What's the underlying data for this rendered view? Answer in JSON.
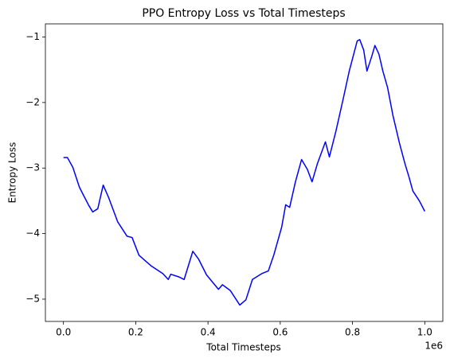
{
  "chart_data": {
    "type": "line",
    "title": "PPO Entropy Loss vs Total Timesteps",
    "xlabel": "Total Timesteps",
    "ylabel": "Entropy Loss",
    "x_offset_label": "1e6",
    "color": "#0000ff",
    "grid": false,
    "x": [
      0,
      11000,
      26000,
      44000,
      55000,
      70000,
      81000,
      95000,
      110000,
      125000,
      150000,
      176000,
      190000,
      209000,
      242000,
      275000,
      290000,
      297000,
      319000,
      334000,
      358000,
      374000,
      396000,
      429000,
      440000,
      462000,
      488000,
      505000,
      523000,
      549000,
      567000,
      582000,
      604000,
      615000,
      626000,
      642000,
      659000,
      675000,
      688000,
      703000,
      725000,
      736000,
      754000,
      774000,
      791000,
      813000,
      820000,
      831000,
      840000,
      853000,
      862000,
      873000,
      884000,
      897000,
      912000,
      930000,
      945000,
      956000,
      967000,
      985000,
      1000000
    ],
    "values": [
      -2.84,
      -2.84,
      -2.99,
      -3.29,
      -3.41,
      -3.57,
      -3.67,
      -3.62,
      -3.26,
      -3.45,
      -3.82,
      -4.04,
      -4.06,
      -4.33,
      -4.49,
      -4.61,
      -4.7,
      -4.62,
      -4.66,
      -4.7,
      -4.27,
      -4.39,
      -4.63,
      -4.85,
      -4.78,
      -4.87,
      -5.09,
      -5.01,
      -4.7,
      -4.61,
      -4.57,
      -4.33,
      -3.9,
      -3.56,
      -3.6,
      -3.21,
      -2.87,
      -3.02,
      -3.21,
      -2.93,
      -2.6,
      -2.83,
      -2.44,
      -1.95,
      -1.52,
      -1.06,
      -1.04,
      -1.2,
      -1.52,
      -1.3,
      -1.13,
      -1.26,
      -1.52,
      -1.77,
      -2.2,
      -2.62,
      -2.93,
      -3.13,
      -3.35,
      -3.5,
      -3.66
    ],
    "xlim": [
      -50000,
      1050000
    ],
    "ylim": [
      -5.34,
      -0.8
    ],
    "xticks": [
      {
        "value": 0,
        "label": "0.0"
      },
      {
        "value": 200000,
        "label": "0.2"
      },
      {
        "value": 400000,
        "label": "0.4"
      },
      {
        "value": 600000,
        "label": "0.6"
      },
      {
        "value": 800000,
        "label": "0.8"
      },
      {
        "value": 1000000,
        "label": "1.0"
      }
    ],
    "yticks": [
      {
        "value": -5,
        "label": "−5"
      },
      {
        "value": -4,
        "label": "−4"
      },
      {
        "value": -3,
        "label": "−3"
      },
      {
        "value": -2,
        "label": "−2"
      },
      {
        "value": -1,
        "label": "−1"
      }
    ]
  }
}
